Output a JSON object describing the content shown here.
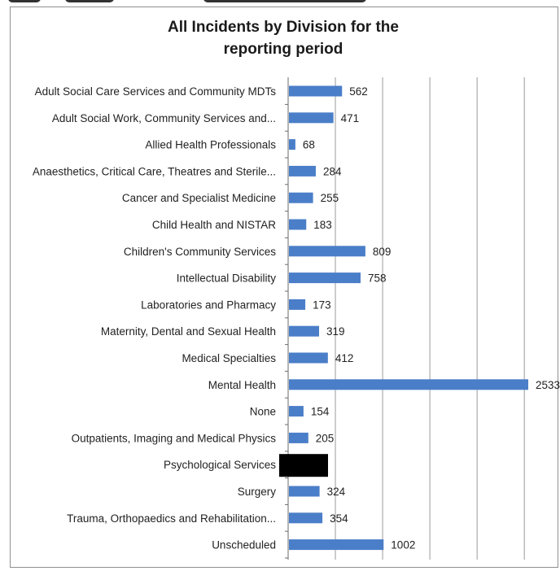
{
  "chart_data": {
    "type": "bar",
    "orientation": "horizontal",
    "title": "All Incidents by Division for the reporting period",
    "title_lines": [
      "All Incidents by Division for the",
      "reporting period"
    ],
    "xlabel": "",
    "ylabel": "",
    "xlim": [
      0,
      2800
    ],
    "grid": true,
    "bar_color": "#4a7ec8",
    "categories": [
      "Adult Social Care Services and Community MDTs",
      "Adult Social Work, Community Services and...",
      "Allied Health Professionals",
      "Anaesthetics, Critical Care, Theatres and Sterile...",
      "Cancer and Specialist Medicine",
      "Child Health and NISTAR",
      "Children's Community Services",
      "Intellectual Disability",
      "Laboratories and Pharmacy",
      "Maternity, Dental and Sexual Health",
      "Medical Specialties",
      "Mental Health",
      "None",
      "Outpatients, Imaging and Medical Physics",
      "Psychological Services",
      "Surgery",
      "Trauma, Orthopaedics and Rehabilitation...",
      "Unscheduled"
    ],
    "values": [
      562,
      471,
      68,
      284,
      255,
      183,
      809,
      758,
      173,
      319,
      412,
      2533,
      154,
      205,
      null,
      324,
      354,
      1002
    ],
    "value_labels": [
      "562",
      "471",
      "68",
      "284",
      "255",
      "183",
      "809",
      "758",
      "173",
      "319",
      "412",
      "2533",
      "154",
      "205",
      "",
      "324",
      "354",
      "1002"
    ],
    "redacted_color": "#000000"
  }
}
